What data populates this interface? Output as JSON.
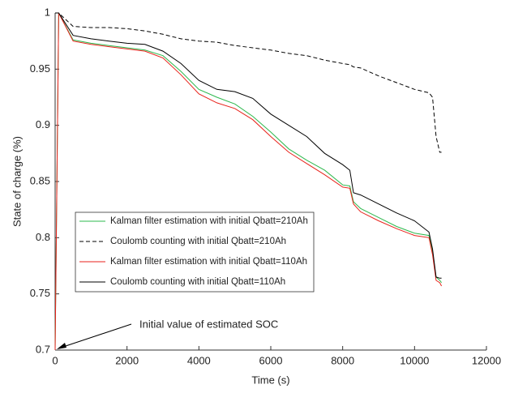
{
  "chart_data": {
    "type": "line",
    "xlabel": "Time (s)",
    "ylabel": "State of charge (%)",
    "x": [
      0,
      100,
      500,
      1000,
      1500,
      2000,
      2500,
      3000,
      3500,
      4000,
      4500,
      5000,
      5500,
      6000,
      6500,
      7000,
      7500,
      8000,
      8200,
      8300,
      8500,
      9000,
      9500,
      10000,
      10400,
      10500,
      10600,
      10700,
      10750
    ],
    "series": [
      {
        "name": "Kalman filter estimation with initial Qbatt=210Ah",
        "color": "#2db84d",
        "line_style": "solid",
        "values": [
          0.7,
          1,
          0.976,
          0.973,
          0.971,
          0.969,
          0.967,
          0.962,
          0.948,
          0.932,
          0.925,
          0.919,
          0.908,
          0.894,
          0.879,
          0.869,
          0.86,
          0.847,
          0.846,
          0.832,
          0.826,
          0.818,
          0.81,
          0.804,
          0.802,
          0.787,
          0.765,
          0.762,
          0.76
        ]
      },
      {
        "name": "Coulomb counting with initial Qbatt=210Ah",
        "color": "#000000",
        "line_style": "dashed",
        "values": [
          1,
          1,
          0.988,
          0.987,
          0.987,
          0.986,
          0.984,
          0.981,
          0.977,
          0.975,
          0.974,
          0.971,
          0.969,
          0.967,
          0.964,
          0.962,
          0.958,
          0.955,
          0.954,
          0.952,
          0.951,
          0.944,
          0.938,
          0.932,
          0.929,
          0.925,
          0.89,
          0.876,
          0.876
        ]
      },
      {
        "name": "Kalman filter estimation with initial Qbatt=110Ah",
        "color": "#e8221b",
        "line_style": "solid",
        "values": [
          0.7,
          1,
          0.975,
          0.972,
          0.97,
          0.968,
          0.966,
          0.96,
          0.945,
          0.928,
          0.92,
          0.915,
          0.905,
          0.89,
          0.876,
          0.866,
          0.856,
          0.845,
          0.844,
          0.83,
          0.823,
          0.815,
          0.808,
          0.802,
          0.8,
          0.785,
          0.762,
          0.76,
          0.757
        ]
      },
      {
        "name": "Coulomb counting with initial Qbatt=110Ah",
        "color": "#000000",
        "line_style": "solid",
        "values": [
          1,
          1,
          0.98,
          0.977,
          0.975,
          0.973,
          0.972,
          0.966,
          0.955,
          0.94,
          0.932,
          0.93,
          0.924,
          0.91,
          0.9,
          0.89,
          0.875,
          0.865,
          0.86,
          0.84,
          0.838,
          0.83,
          0.822,
          0.815,
          0.805,
          0.79,
          0.765,
          0.764,
          0.764
        ]
      }
    ],
    "xlim": [
      0,
      12000
    ],
    "xticks": [
      0,
      2000,
      4000,
      6000,
      8000,
      10000,
      12000
    ],
    "ylim": [
      0.7,
      1
    ],
    "yticks": [
      0.7,
      0.75,
      0.8,
      0.85,
      0.9,
      0.95,
      1
    ],
    "annotation": "Initial value of estimated SOC"
  }
}
